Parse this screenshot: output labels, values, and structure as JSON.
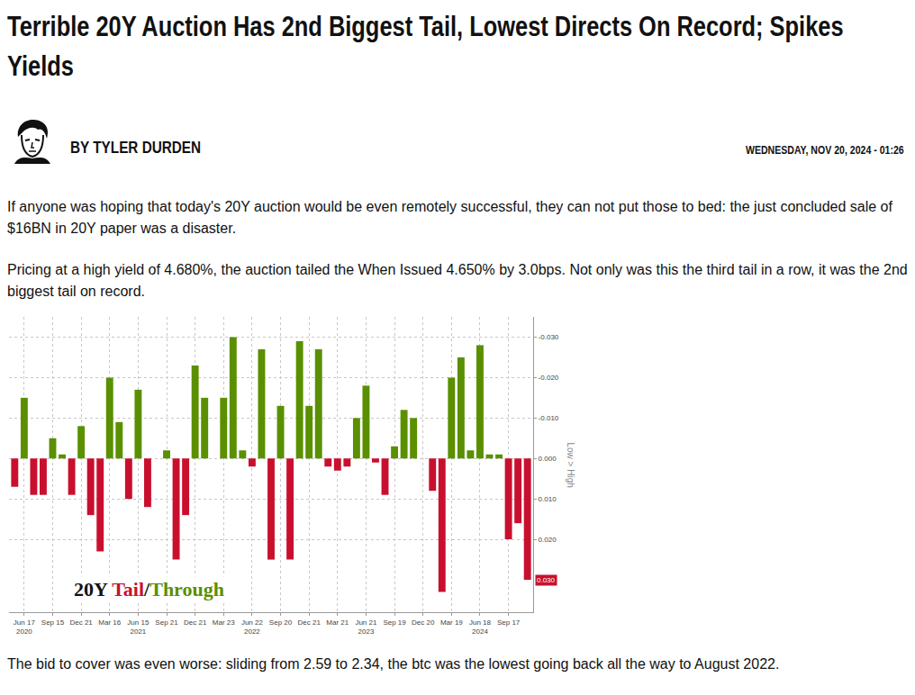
{
  "header": {
    "title": "Terrible 20Y Auction Has 2nd Biggest Tail, Lowest Directs On Record; Spikes Yields",
    "byline": "BY TYLER DURDEN",
    "date": "WEDNESDAY, NOV 20, 2024 - 01:26"
  },
  "body": {
    "before_chart": [
      "If anyone was hoping that today's 20Y auction would be even remotely successful, they can not put those to bed: the just concluded sale of $16BN in 20Y paper was a disaster.",
      "Pricing at a high yield of 4.680%, the auction tailed the When Issued 4.650% by 3.0bps. Not only was this the third tail in a row, it was the 2nd biggest tail on record."
    ],
    "after_chart": [
      "The bid to cover was even worse: sliding from 2.59 to 2.34, the btc was the lowest going back all the way to August 2022."
    ]
  },
  "chart_data": {
    "type": "bar",
    "title": "20Y Tail/Through",
    "y_label": "Low > High",
    "categories": [
      null,
      "Jun 17\n2020",
      null,
      null,
      "Sep 15",
      null,
      null,
      "Dec 21",
      null,
      null,
      "Mar 16",
      null,
      null,
      "Jun 15\n2021",
      null,
      null,
      "Sep 21",
      null,
      null,
      "Dec 21",
      null,
      null,
      "Mar 23",
      null,
      null,
      "Jun 22\n2022",
      null,
      null,
      "Sep 20",
      null,
      null,
      "Dec 21",
      null,
      null,
      "Mar 21",
      null,
      null,
      "Jun 21\n2023",
      null,
      null,
      "Sep 19",
      null,
      null,
      "Dec 20",
      null,
      null,
      "Mar 19",
      null,
      null,
      "Jun 18\n2024",
      null,
      null,
      "Sep 17",
      null,
      null
    ],
    "series": [
      {
        "name": "Tail",
        "color": "#c8102e",
        "values": [
          0.007,
          null,
          0.009,
          0.009,
          null,
          null,
          0.009,
          null,
          0.014,
          0.023,
          null,
          null,
          0.01,
          null,
          0.012,
          0,
          null,
          0.025,
          0.014,
          null,
          null,
          0,
          null,
          null,
          null,
          0.002,
          null,
          0.025,
          null,
          0.025,
          null,
          null,
          null,
          0.002,
          0.003,
          0.002,
          null,
          null,
          0.001,
          0.009,
          null,
          null,
          null,
          0,
          0.008,
          0.033,
          null,
          null,
          null,
          null,
          null,
          null,
          0.02,
          0.016,
          0.03
        ]
      },
      {
        "name": "Through",
        "color": "#5a8f00",
        "values": [
          null,
          -0.015,
          null,
          null,
          -0.005,
          -0.001,
          null,
          -0.008,
          null,
          null,
          -0.02,
          -0.009,
          null,
          -0.017,
          null,
          null,
          -0.002,
          null,
          null,
          -0.023,
          -0.015,
          null,
          -0.015,
          -0.03,
          -0.002,
          null,
          -0.027,
          null,
          -0.013,
          null,
          -0.029,
          -0.013,
          -0.027,
          null,
          null,
          null,
          -0.01,
          -0.018,
          null,
          null,
          -0.003,
          -0.012,
          -0.01,
          null,
          null,
          null,
          -0.02,
          -0.025,
          -0.002,
          -0.028,
          -0.001,
          -0.001,
          null,
          null,
          null
        ]
      }
    ],
    "ylim": [
      0.038,
      -0.035
    ],
    "yticks": [
      {
        "value": -0.03,
        "label": "-0.030"
      },
      {
        "value": -0.02,
        "label": "-0.020"
      },
      {
        "value": -0.01,
        "label": "-0.010"
      },
      {
        "value": 0,
        "label": "0.000"
      },
      {
        "value": 0.01,
        "label": "0.010"
      },
      {
        "value": 0.02,
        "label": "0.020"
      }
    ],
    "annotations": [
      {
        "text": "0.030",
        "value": 0.03,
        "color": "#c8102e"
      }
    ],
    "grid": true
  }
}
